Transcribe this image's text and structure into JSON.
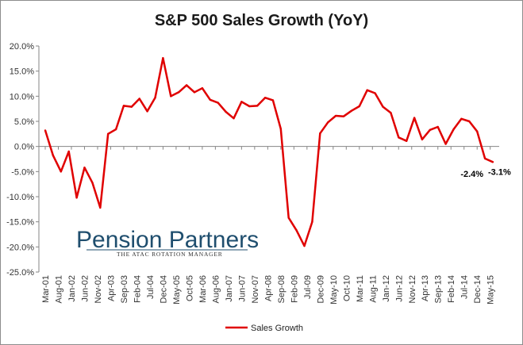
{
  "chart_data": {
    "type": "line",
    "title": "S&P 500 Sales Growth (YoY)",
    "xlabel": "",
    "ylabel": "",
    "ylim": [
      -25,
      20
    ],
    "yticks": [
      "20.0%",
      "15.0%",
      "10.0%",
      "5.0%",
      "0.0%",
      "-5.0%",
      "-10.0%",
      "-15.0%",
      "-20.0%",
      "-25.0%"
    ],
    "xtick_labels": [
      "Mar-01",
      "Aug-01",
      "Jan-02",
      "Jun-02",
      "Nov-02",
      "Apr-03",
      "Sep-03",
      "Feb-04",
      "Jul-04",
      "Dec-04",
      "May-05",
      "Oct-05",
      "Mar-06",
      "Aug-06",
      "Jan-07",
      "Jun-07",
      "Nov-07",
      "Apr-08",
      "Sep-08",
      "Feb-09",
      "Jul-09",
      "Dec-09",
      "May-10",
      "Oct-10",
      "Mar-11",
      "Aug-11",
      "Jan-12",
      "Jun-12",
      "Nov-12",
      "Apr-13",
      "Sep-13",
      "Feb-14",
      "Jul-14",
      "Dec-14",
      "May-15"
    ],
    "grid": false,
    "legend_position": "bottom",
    "series": [
      {
        "name": "Sales Growth",
        "color": "#e00000",
        "values": [
          3.2,
          -1.8,
          -5.0,
          -1.0,
          -10.2,
          -4.2,
          -7.2,
          -12.2,
          2.5,
          3.4,
          8.1,
          7.9,
          9.5,
          7.0,
          9.7,
          17.6,
          10.0,
          10.8,
          12.2,
          10.8,
          11.6,
          9.3,
          8.7,
          6.9,
          5.6,
          8.9,
          8.0,
          8.1,
          9.7,
          9.2,
          3.5,
          -14.2,
          -16.7,
          -19.8,
          -15.0,
          2.6,
          4.8,
          6.1,
          6.0,
          7.1,
          8.0,
          11.2,
          10.6,
          7.9,
          6.7,
          1.8,
          1.1,
          5.7,
          1.4,
          3.3,
          3.9,
          0.5,
          3.4,
          5.5,
          5.0,
          3.0,
          -2.4,
          -3.1
        ]
      }
    ],
    "annotations": [
      "-2.4%",
      "-3.1%"
    ]
  },
  "legend": {
    "label": "Sales Growth",
    "color": "#e00000"
  },
  "logo": {
    "name": "Pension Partners",
    "tagline": "THE ATAC ROTATION MANAGER"
  }
}
